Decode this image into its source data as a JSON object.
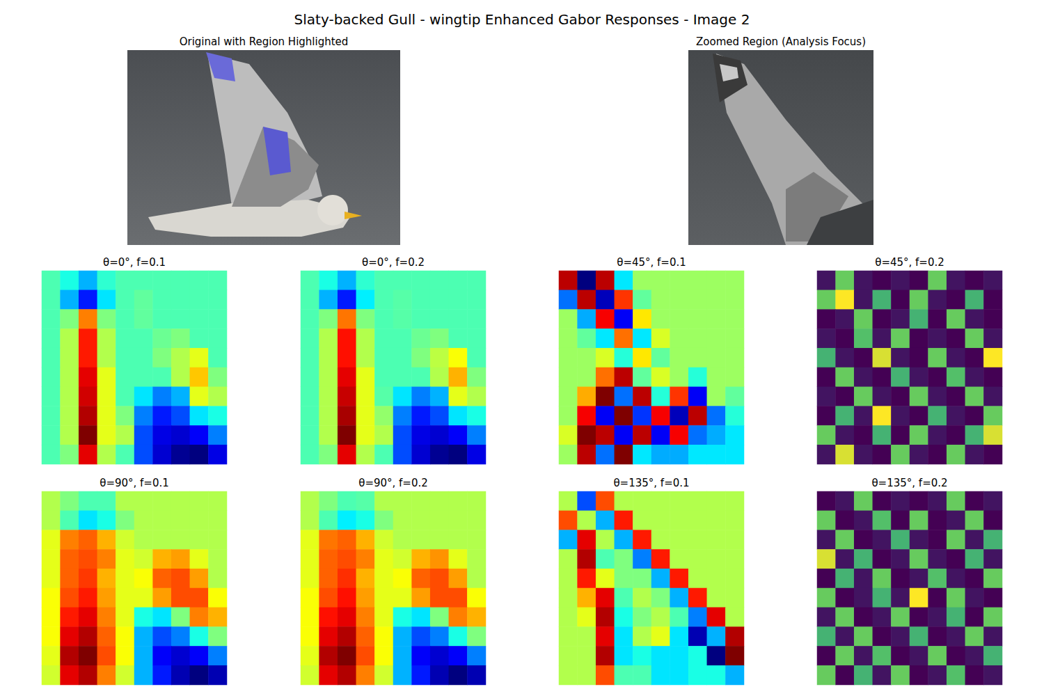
{
  "title": "Slaty-backed Gull - wingtip Enhanced Gabor Responses - Image 2",
  "images": [
    {
      "title": "Original with Region Highlighted"
    },
    {
      "title": "Zoomed Region (Analysis Focus)"
    }
  ],
  "chart_data": [
    {
      "type": "heatmap",
      "title": "θ=0°, f=0.1",
      "color": "jet",
      "tick_labels": false,
      "cells": [
        [
          0.45,
          0.4,
          0.3,
          0.42,
          0.45,
          0.45,
          0.45,
          0.45,
          0.45,
          0.45
        ],
        [
          0.45,
          0.3,
          0.15,
          0.35,
          0.45,
          0.47,
          0.45,
          0.45,
          0.45,
          0.45
        ],
        [
          0.45,
          0.5,
          0.75,
          0.5,
          0.45,
          0.47,
          0.45,
          0.45,
          0.45,
          0.45
        ],
        [
          0.45,
          0.55,
          0.85,
          0.55,
          0.45,
          0.45,
          0.48,
          0.5,
          0.45,
          0.45
        ],
        [
          0.45,
          0.55,
          0.85,
          0.55,
          0.45,
          0.45,
          0.5,
          0.55,
          0.6,
          0.45
        ],
        [
          0.45,
          0.55,
          0.9,
          0.6,
          0.45,
          0.45,
          0.45,
          0.55,
          0.68,
          0.5
        ],
        [
          0.45,
          0.55,
          0.92,
          0.6,
          0.45,
          0.35,
          0.25,
          0.3,
          0.6,
          0.55
        ],
        [
          0.45,
          0.55,
          0.95,
          0.6,
          0.5,
          0.25,
          0.15,
          0.2,
          0.35,
          0.4
        ],
        [
          0.45,
          0.55,
          1.0,
          0.6,
          0.55,
          0.2,
          0.1,
          0.08,
          0.12,
          0.25
        ],
        [
          0.45,
          0.5,
          0.9,
          0.55,
          0.45,
          0.2,
          0.08,
          0.02,
          0.0,
          0.1
        ]
      ]
    },
    {
      "type": "heatmap",
      "title": "θ=0°, f=0.2",
      "color": "jet",
      "tick_labels": false,
      "cells": [
        [
          0.45,
          0.4,
          0.3,
          0.42,
          0.45,
          0.45,
          0.45,
          0.45,
          0.45,
          0.45
        ],
        [
          0.45,
          0.3,
          0.15,
          0.36,
          0.45,
          0.46,
          0.45,
          0.45,
          0.45,
          0.45
        ],
        [
          0.45,
          0.5,
          0.76,
          0.5,
          0.45,
          0.46,
          0.45,
          0.45,
          0.45,
          0.45
        ],
        [
          0.45,
          0.55,
          0.86,
          0.55,
          0.45,
          0.45,
          0.48,
          0.5,
          0.45,
          0.45
        ],
        [
          0.45,
          0.55,
          0.86,
          0.55,
          0.45,
          0.45,
          0.5,
          0.56,
          0.62,
          0.45
        ],
        [
          0.45,
          0.55,
          0.9,
          0.6,
          0.45,
          0.45,
          0.45,
          0.55,
          0.7,
          0.5
        ],
        [
          0.45,
          0.55,
          0.93,
          0.6,
          0.46,
          0.35,
          0.25,
          0.3,
          0.6,
          0.55
        ],
        [
          0.45,
          0.55,
          0.96,
          0.6,
          0.52,
          0.25,
          0.15,
          0.2,
          0.35,
          0.4
        ],
        [
          0.45,
          0.55,
          1.0,
          0.6,
          0.55,
          0.2,
          0.1,
          0.08,
          0.12,
          0.25
        ],
        [
          0.45,
          0.5,
          0.9,
          0.55,
          0.45,
          0.2,
          0.08,
          0.02,
          0.0,
          0.1
        ]
      ]
    },
    {
      "type": "heatmap",
      "title": "θ=45°, f=0.1",
      "color": "jet",
      "tick_labels": false,
      "cells": [
        [
          0.9,
          0.1,
          0.9,
          0.4,
          0.55,
          0.55,
          0.55,
          0.55,
          0.55,
          0.55
        ],
        [
          0.3,
          0.9,
          0.15,
          0.8,
          0.5,
          0.55,
          0.55,
          0.55,
          0.55,
          0.55
        ],
        [
          0.55,
          0.35,
          0.85,
          0.2,
          0.65,
          0.55,
          0.55,
          0.55,
          0.55,
          0.55
        ],
        [
          0.55,
          0.5,
          0.4,
          0.75,
          0.4,
          0.6,
          0.55,
          0.55,
          0.55,
          0.55
        ],
        [
          0.55,
          0.55,
          0.6,
          0.45,
          0.65,
          0.5,
          0.55,
          0.55,
          0.55,
          0.55
        ],
        [
          0.55,
          0.55,
          0.75,
          0.9,
          0.5,
          0.6,
          0.55,
          0.45,
          0.55,
          0.55
        ],
        [
          0.55,
          0.7,
          0.95,
          0.3,
          0.9,
          0.45,
          0.8,
          0.2,
          0.55,
          0.5
        ],
        [
          0.55,
          0.85,
          0.2,
          0.95,
          0.25,
          0.85,
          0.15,
          0.9,
          0.3,
          0.45
        ],
        [
          0.6,
          0.95,
          0.9,
          0.2,
          0.9,
          0.2,
          0.85,
          0.3,
          0.35,
          0.4
        ],
        [
          0.55,
          0.9,
          0.3,
          0.95,
          0.4,
          0.35,
          0.35,
          0.4,
          0.4,
          0.4
        ]
      ]
    },
    {
      "type": "heatmap",
      "title": "θ=45°, f=0.2",
      "color": "viridis",
      "tick_labels": false,
      "cells": [
        [
          0.1,
          0.7,
          0.1,
          0.05,
          0.1,
          0.05,
          0.7,
          0.1,
          0.05,
          0.1
        ],
        [
          0.7,
          0.9,
          0.1,
          0.6,
          0.05,
          0.7,
          0.1,
          0.05,
          0.6,
          0.05
        ],
        [
          0.05,
          0.1,
          0.7,
          0.05,
          0.1,
          0.6,
          0.05,
          0.7,
          0.1,
          0.05
        ],
        [
          0.1,
          0.05,
          0.65,
          0.1,
          0.7,
          0.05,
          0.1,
          0.05,
          0.7,
          0.1
        ],
        [
          0.6,
          0.1,
          0.05,
          0.85,
          0.1,
          0.05,
          0.7,
          0.1,
          0.05,
          0.9
        ],
        [
          0.05,
          0.7,
          0.1,
          0.05,
          0.6,
          0.1,
          0.05,
          0.65,
          0.1,
          0.05
        ],
        [
          0.1,
          0.05,
          0.7,
          0.1,
          0.05,
          0.7,
          0.1,
          0.05,
          0.7,
          0.1
        ],
        [
          0.05,
          0.6,
          0.1,
          0.9,
          0.1,
          0.05,
          0.6,
          0.1,
          0.05,
          0.7
        ],
        [
          0.7,
          0.1,
          0.05,
          0.6,
          0.05,
          0.7,
          0.1,
          0.05,
          0.6,
          0.85
        ],
        [
          0.1,
          0.85,
          0.1,
          0.05,
          0.7,
          0.1,
          0.05,
          0.7,
          0.1,
          0.05
        ]
      ]
    },
    {
      "type": "heatmap",
      "title": "θ=90°, f=0.1",
      "color": "jet",
      "tick_labels": false,
      "cells": [
        [
          0.55,
          0.5,
          0.45,
          0.45,
          0.55,
          0.55,
          0.55,
          0.55,
          0.55,
          0.55
        ],
        [
          0.55,
          0.45,
          0.35,
          0.4,
          0.5,
          0.55,
          0.55,
          0.55,
          0.55,
          0.55
        ],
        [
          0.6,
          0.75,
          0.78,
          0.7,
          0.58,
          0.55,
          0.55,
          0.55,
          0.55,
          0.55
        ],
        [
          0.6,
          0.78,
          0.8,
          0.75,
          0.6,
          0.58,
          0.7,
          0.72,
          0.6,
          0.55
        ],
        [
          0.6,
          0.78,
          0.82,
          0.7,
          0.6,
          0.62,
          0.78,
          0.8,
          0.72,
          0.55
        ],
        [
          0.62,
          0.8,
          0.85,
          0.72,
          0.6,
          0.6,
          0.72,
          0.8,
          0.8,
          0.62
        ],
        [
          0.62,
          0.85,
          0.9,
          0.75,
          0.6,
          0.4,
          0.35,
          0.5,
          0.75,
          0.7
        ],
        [
          0.62,
          0.9,
          0.95,
          0.78,
          0.62,
          0.3,
          0.2,
          0.25,
          0.4,
          0.5
        ],
        [
          0.6,
          0.95,
          1.0,
          0.8,
          0.62,
          0.3,
          0.12,
          0.08,
          0.12,
          0.25
        ],
        [
          0.58,
          0.9,
          0.95,
          0.75,
          0.58,
          0.3,
          0.15,
          0.05,
          0.0,
          0.05
        ]
      ]
    },
    {
      "type": "heatmap",
      "title": "θ=90°, f=0.2",
      "color": "jet",
      "tick_labels": false,
      "cells": [
        [
          0.55,
          0.5,
          0.45,
          0.46,
          0.55,
          0.55,
          0.55,
          0.55,
          0.55,
          0.55
        ],
        [
          0.55,
          0.45,
          0.36,
          0.4,
          0.5,
          0.55,
          0.55,
          0.55,
          0.55,
          0.55
        ],
        [
          0.6,
          0.76,
          0.78,
          0.7,
          0.58,
          0.55,
          0.55,
          0.55,
          0.55,
          0.55
        ],
        [
          0.6,
          0.78,
          0.8,
          0.75,
          0.6,
          0.58,
          0.7,
          0.73,
          0.6,
          0.55
        ],
        [
          0.6,
          0.78,
          0.83,
          0.7,
          0.6,
          0.62,
          0.78,
          0.8,
          0.72,
          0.55
        ],
        [
          0.62,
          0.8,
          0.86,
          0.72,
          0.6,
          0.6,
          0.72,
          0.8,
          0.8,
          0.62
        ],
        [
          0.62,
          0.86,
          0.9,
          0.75,
          0.6,
          0.4,
          0.35,
          0.5,
          0.75,
          0.7
        ],
        [
          0.62,
          0.9,
          0.95,
          0.78,
          0.62,
          0.3,
          0.2,
          0.25,
          0.4,
          0.5
        ],
        [
          0.6,
          0.95,
          1.0,
          0.8,
          0.62,
          0.3,
          0.12,
          0.08,
          0.12,
          0.25
        ],
        [
          0.58,
          0.9,
          0.95,
          0.75,
          0.58,
          0.3,
          0.15,
          0.05,
          0.0,
          0.05
        ]
      ]
    },
    {
      "type": "heatmap",
      "title": "θ=135°, f=0.1",
      "color": "jet",
      "tick_labels": false,
      "cells": [
        [
          0.55,
          0.2,
          0.8,
          0.55,
          0.55,
          0.55,
          0.55,
          0.55,
          0.55,
          0.55
        ],
        [
          0.8,
          0.55,
          0.3,
          0.85,
          0.55,
          0.55,
          0.55,
          0.55,
          0.55,
          0.55
        ],
        [
          0.3,
          0.9,
          0.55,
          0.3,
          0.85,
          0.55,
          0.55,
          0.55,
          0.55,
          0.55
        ],
        [
          0.55,
          0.95,
          0.45,
          0.5,
          0.25,
          0.85,
          0.55,
          0.55,
          0.55,
          0.55
        ],
        [
          0.55,
          0.85,
          0.6,
          0.5,
          0.5,
          0.3,
          0.85,
          0.55,
          0.55,
          0.55
        ],
        [
          0.55,
          0.7,
          0.9,
          0.45,
          0.55,
          0.5,
          0.3,
          0.85,
          0.55,
          0.55
        ],
        [
          0.55,
          0.6,
          0.95,
          0.4,
          0.5,
          0.55,
          0.45,
          0.25,
          0.9,
          0.55
        ],
        [
          0.55,
          0.55,
          0.9,
          0.35,
          0.55,
          0.6,
          0.35,
          0.05,
          0.3,
          0.95
        ],
        [
          0.55,
          0.55,
          0.95,
          0.35,
          0.4,
          0.35,
          0.35,
          0.4,
          0.0,
          1.0
        ],
        [
          0.55,
          0.55,
          0.8,
          0.45,
          0.45,
          0.35,
          0.35,
          0.4,
          0.4,
          0.3
        ]
      ]
    },
    {
      "type": "heatmap",
      "title": "θ=135°, f=0.2",
      "color": "viridis",
      "tick_labels": false,
      "cells": [
        [
          0.05,
          0.1,
          0.7,
          0.05,
          0.1,
          0.05,
          0.1,
          0.7,
          0.05,
          0.1
        ],
        [
          0.7,
          0.05,
          0.1,
          0.65,
          0.05,
          0.7,
          0.05,
          0.1,
          0.7,
          0.05
        ],
        [
          0.1,
          0.7,
          0.05,
          0.1,
          0.6,
          0.1,
          0.05,
          0.7,
          0.1,
          0.6
        ],
        [
          0.85,
          0.1,
          0.6,
          0.05,
          0.1,
          0.7,
          0.1,
          0.05,
          0.6,
          0.1
        ],
        [
          0.05,
          0.6,
          0.1,
          0.7,
          0.05,
          0.1,
          0.65,
          0.1,
          0.05,
          0.7
        ],
        [
          0.7,
          0.05,
          0.1,
          0.6,
          0.1,
          0.9,
          0.05,
          0.7,
          0.1,
          0.05
        ],
        [
          0.1,
          0.7,
          0.05,
          0.1,
          0.7,
          0.05,
          0.1,
          0.6,
          0.05,
          0.7
        ],
        [
          0.6,
          0.1,
          0.7,
          0.05,
          0.1,
          0.6,
          0.05,
          0.1,
          0.7,
          0.1
        ],
        [
          0.05,
          0.7,
          0.1,
          0.65,
          0.05,
          0.1,
          0.7,
          0.05,
          0.1,
          0.6
        ],
        [
          0.7,
          0.05,
          0.6,
          0.1,
          0.7,
          0.05,
          0.1,
          0.65,
          0.05,
          0.1
        ]
      ]
    }
  ]
}
